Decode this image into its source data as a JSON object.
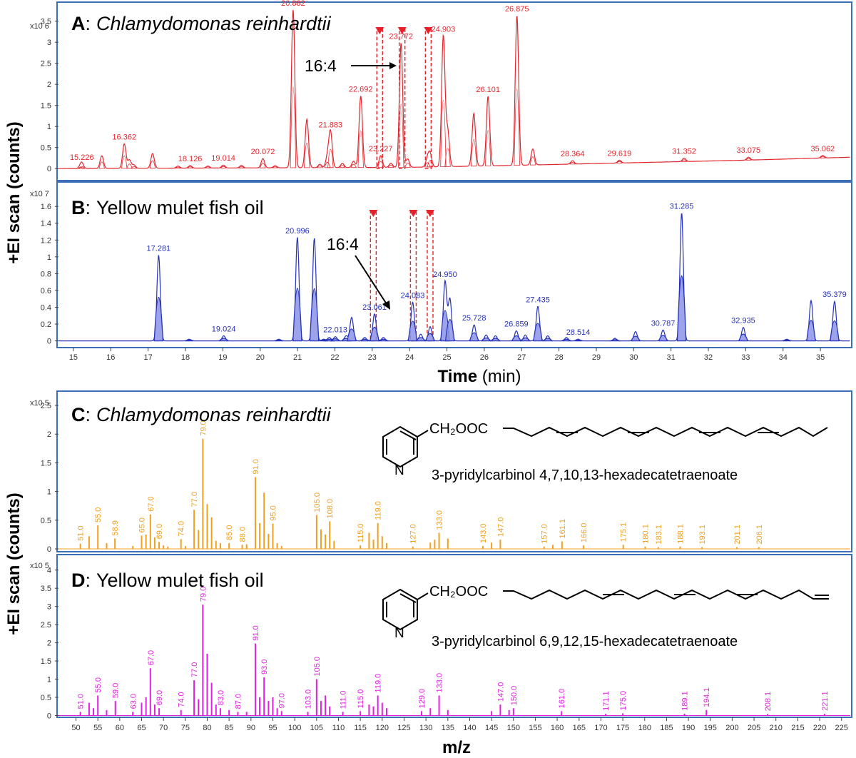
{
  "ylabel": "+EI scan (counts)",
  "colors": {
    "chrom_a": "#e3262d",
    "chrom_b": "#2431b8",
    "spec_c": "#f0a020",
    "spec_d": "#e020e0",
    "frame": "#3a6fb5",
    "marker": "#e8202a"
  },
  "panels": {
    "a": {
      "letter": "A",
      "sep": ":",
      "name": "Chlamydomonas reinhardtii",
      "italic": true,
      "exponent": "x10 6",
      "arrow_label": "16:4"
    },
    "b": {
      "letter": "B",
      "sep": ":",
      "name": "Yellow mulet fish oil",
      "italic": false,
      "exponent": "x10 7",
      "arrow_label": "16:4"
    },
    "c": {
      "letter": "C",
      "sep": ":",
      "name": "Chlamydomonas reinhardtii",
      "italic": true,
      "exponent": "x10 5",
      "compound": "3-pyridylcarbinol 4,7,10,13-hexadecatetraenoate",
      "formula": "CH₂OOC"
    },
    "d": {
      "letter": "D",
      "sep": ":",
      "name": "Yellow mulet fish oil",
      "italic": false,
      "exponent": "x10 5",
      "compound": "3-pyridylcarbinol 6,9,12,15-hexadecatetraenoate",
      "formula": "CH₂OOC"
    }
  },
  "axis_titles": {
    "time_bold": "Time",
    "time_unit": " (min)",
    "mz": "m/z"
  },
  "chart_data": [
    {
      "type": "line",
      "id": "A",
      "title": "Chlamydomonas reinhardtii",
      "xlabel": "Time (min)",
      "ylabel": "+EI scan (counts)",
      "xlim": [
        14.6,
        35.8
      ],
      "ylim": [
        -0.2,
        3.8
      ],
      "yticks": [
        "0",
        "0.5",
        "1",
        "1.5",
        "2",
        "2.5",
        "3",
        "3.5"
      ],
      "marked_rt": [
        23.2,
        23.8,
        24.5
      ],
      "peaks": [
        {
          "rt": 15.2,
          "h": 0.06
        },
        {
          "rt": 15.226,
          "h": 0.1,
          "label": "15.226"
        },
        {
          "rt": 15.76,
          "h": 0.3
        },
        {
          "rt": 16.362,
          "h": 0.58,
          "label": "16.362"
        },
        {
          "rt": 16.5,
          "h": 0.2
        },
        {
          "rt": 16.62,
          "h": 0.08
        },
        {
          "rt": 17.12,
          "h": 0.35
        },
        {
          "rt": 17.8,
          "h": 0.05
        },
        {
          "rt": 18.126,
          "h": 0.06,
          "label": "18.126"
        },
        {
          "rt": 18.6,
          "h": 0.05
        },
        {
          "rt": 19.014,
          "h": 0.07,
          "label": "19.014"
        },
        {
          "rt": 19.5,
          "h": 0.06
        },
        {
          "rt": 20.072,
          "h": 0.22,
          "label": "20.072"
        },
        {
          "rt": 20.4,
          "h": 0.05
        },
        {
          "rt": 20.882,
          "h": 3.75,
          "label": "20.882"
        },
        {
          "rt": 21.25,
          "h": 1.15
        },
        {
          "rt": 21.6,
          "h": 0.08
        },
        {
          "rt": 21.8,
          "h": 0.25
        },
        {
          "rt": 21.883,
          "h": 0.85,
          "label": "21.883"
        },
        {
          "rt": 22.2,
          "h": 0.1
        },
        {
          "rt": 22.5,
          "h": 0.15
        },
        {
          "rt": 22.692,
          "h": 1.7,
          "label": "22.692"
        },
        {
          "rt": 23.227,
          "h": 0.28,
          "label": "23.227"
        },
        {
          "rt": 23.5,
          "h": 0.1
        },
        {
          "rt": 23.772,
          "h": 2.95,
          "label": "23.772"
        },
        {
          "rt": 23.95,
          "h": 0.2
        },
        {
          "rt": 24.48,
          "h": 0.2
        },
        {
          "rt": 24.55,
          "h": 0.3
        },
        {
          "rt": 24.903,
          "h": 3.1,
          "label": "24.903"
        },
        {
          "rt": 25.02,
          "h": 0.85
        },
        {
          "rt": 25.72,
          "h": 1.25
        },
        {
          "rt": 26.101,
          "h": 1.65,
          "label": "26.101"
        },
        {
          "rt": 26.875,
          "h": 3.55,
          "label": "26.875"
        },
        {
          "rt": 27.3,
          "h": 0.38
        },
        {
          "rt": 28.364,
          "h": 0.08,
          "label": "28.364"
        },
        {
          "rt": 29.619,
          "h": 0.07,
          "label": "29.619"
        },
        {
          "rt": 31.352,
          "h": 0.08,
          "label": "31.352"
        },
        {
          "rt": 33.075,
          "h": 0.07,
          "label": "33.075"
        },
        {
          "rt": 35.062,
          "h": 0.06,
          "label": "35.062"
        }
      ],
      "baseline": [
        [
          14.6,
          0.0
        ],
        [
          24.0,
          0.03
        ],
        [
          27.0,
          0.08
        ],
        [
          30.0,
          0.14
        ],
        [
          33.0,
          0.2
        ],
        [
          35.8,
          0.27
        ]
      ]
    },
    {
      "type": "area",
      "id": "B",
      "title": "Yellow mulet fish oil",
      "xlabel": "Time (min)",
      "ylabel": "+EI scan (counts)",
      "xlim": [
        14.6,
        35.8
      ],
      "ylim": [
        -0.08,
        1.78
      ],
      "yticks": [
        "0",
        "0.2",
        "0.4",
        "0.6",
        "0.8",
        "1",
        "1.2",
        "1.4",
        "1.6"
      ],
      "xticks": [
        "15",
        "16",
        "17",
        "18",
        "19",
        "20",
        "21",
        "22",
        "23",
        "24",
        "25",
        "26",
        "27",
        "28",
        "29",
        "30",
        "31",
        "32",
        "33",
        "34",
        "35"
      ],
      "marked_rt": [
        23.03,
        24.1,
        24.55
      ],
      "peaks": [
        {
          "rt": 17.281,
          "h": 1.02,
          "label": "17.281"
        },
        {
          "rt": 18.1,
          "h": 0.02
        },
        {
          "rt": 19.024,
          "h": 0.06,
          "label": "19.024"
        },
        {
          "rt": 20.5,
          "h": 0.02
        },
        {
          "rt": 20.996,
          "h": 1.23,
          "label": "20.996"
        },
        {
          "rt": 21.45,
          "h": 1.22
        },
        {
          "rt": 21.7,
          "h": 0.02
        },
        {
          "rt": 21.85,
          "h": 0.04
        },
        {
          "rt": 22.013,
          "h": 0.05,
          "label": "22.013"
        },
        {
          "rt": 22.3,
          "h": 0.06
        },
        {
          "rt": 22.45,
          "h": 0.28
        },
        {
          "rt": 22.8,
          "h": 0.04
        },
        {
          "rt": 23.061,
          "h": 0.32,
          "label": "23.061"
        },
        {
          "rt": 23.3,
          "h": 0.04
        },
        {
          "rt": 24.083,
          "h": 0.46,
          "label": "24.083"
        },
        {
          "rt": 24.3,
          "h": 0.08
        },
        {
          "rt": 24.55,
          "h": 0.17
        },
        {
          "rt": 24.95,
          "h": 0.71,
          "label": "24.950"
        },
        {
          "rt": 25.08,
          "h": 0.5
        },
        {
          "rt": 25.728,
          "h": 0.19,
          "label": "25.728"
        },
        {
          "rt": 26.05,
          "h": 0.07
        },
        {
          "rt": 26.3,
          "h": 0.06
        },
        {
          "rt": 26.859,
          "h": 0.12,
          "label": "26.859"
        },
        {
          "rt": 27.1,
          "h": 0.07
        },
        {
          "rt": 27.435,
          "h": 0.41,
          "label": "27.435"
        },
        {
          "rt": 27.7,
          "h": 0.06
        },
        {
          "rt": 28.2,
          "h": 0.04
        },
        {
          "rt": 28.514,
          "h": 0.02,
          "label": "28.514"
        },
        {
          "rt": 29.5,
          "h": 0.03
        },
        {
          "rt": 30.05,
          "h": 0.11
        },
        {
          "rt": 30.787,
          "h": 0.13,
          "label": "30.787"
        },
        {
          "rt": 31.285,
          "h": 1.52,
          "label": "31.285"
        },
        {
          "rt": 32.935,
          "h": 0.16,
          "label": "32.935"
        },
        {
          "rt": 34.1,
          "h": 0.02
        },
        {
          "rt": 34.75,
          "h": 0.48
        },
        {
          "rt": 35.379,
          "h": 0.47,
          "label": "35.379"
        }
      ]
    },
    {
      "type": "bar",
      "id": "C",
      "title": "Chlamydomonas reinhardtii",
      "ylabel": "+EI scan (counts)",
      "xlim": [
        46,
        227
      ],
      "ylim": [
        -0.05,
        2.65
      ],
      "yticks": [
        "0",
        "0.5",
        "1",
        "1.5",
        "2",
        "2.5"
      ],
      "labeled": [
        {
          "mz": 51.0,
          "h": 0.09,
          "label": "51.0"
        },
        {
          "mz": 53.0,
          "h": 0.22
        },
        {
          "mz": 55.0,
          "h": 0.41,
          "label": "55.0"
        },
        {
          "mz": 57.0,
          "h": 0.1
        },
        {
          "mz": 58.9,
          "h": 0.18,
          "label": "58.9"
        },
        {
          "mz": 63.0,
          "h": 0.05
        },
        {
          "mz": 65.0,
          "h": 0.23,
          "label": "65.0"
        },
        {
          "mz": 66.0,
          "h": 0.25
        },
        {
          "mz": 67.0,
          "h": 0.6,
          "label": "67.0"
        },
        {
          "mz": 68.0,
          "h": 0.2
        },
        {
          "mz": 69.0,
          "h": 0.12,
          "label": "69.0"
        },
        {
          "mz": 70.0,
          "h": 0.06
        },
        {
          "mz": 71.0,
          "h": 0.04
        },
        {
          "mz": 74.0,
          "h": 0.17,
          "label": "74.0"
        },
        {
          "mz": 75.0,
          "h": 0.05
        },
        {
          "mz": 77.0,
          "h": 0.68,
          "label": "77.0"
        },
        {
          "mz": 78.0,
          "h": 0.33
        },
        {
          "mz": 79.0,
          "h": 1.92,
          "label": "79.0"
        },
        {
          "mz": 80.0,
          "h": 0.78
        },
        {
          "mz": 81.0,
          "h": 0.55
        },
        {
          "mz": 82.0,
          "h": 0.14
        },
        {
          "mz": 83.0,
          "h": 0.1
        },
        {
          "mz": 85.0,
          "h": 0.1,
          "label": "85.0"
        },
        {
          "mz": 88.0,
          "h": 0.07,
          "label": "88.0"
        },
        {
          "mz": 89.0,
          "h": 0.08
        },
        {
          "mz": 91.0,
          "h": 1.25,
          "label": "91.0"
        },
        {
          "mz": 92.0,
          "h": 0.45
        },
        {
          "mz": 93.0,
          "h": 0.98
        },
        {
          "mz": 94.0,
          "h": 0.26
        },
        {
          "mz": 95.0,
          "h": 0.44,
          "label": "95.0"
        },
        {
          "mz": 96.0,
          "h": 0.1
        },
        {
          "mz": 97.0,
          "h": 0.05
        },
        {
          "mz": 105.0,
          "h": 0.59,
          "label": "105.0"
        },
        {
          "mz": 106.0,
          "h": 0.34
        },
        {
          "mz": 107.0,
          "h": 0.25
        },
        {
          "mz": 108.0,
          "h": 0.48,
          "label": "108.0"
        },
        {
          "mz": 109.0,
          "h": 0.14
        },
        {
          "mz": 115.0,
          "h": 0.06,
          "label": "115.0"
        },
        {
          "mz": 117.0,
          "h": 0.28
        },
        {
          "mz": 118.0,
          "h": 0.16
        },
        {
          "mz": 119.0,
          "h": 0.45,
          "label": "119.0"
        },
        {
          "mz": 120.0,
          "h": 0.22
        },
        {
          "mz": 121.0,
          "h": 0.1
        },
        {
          "mz": 127.0,
          "h": 0.04,
          "label": "127.0"
        },
        {
          "mz": 131.0,
          "h": 0.11
        },
        {
          "mz": 132.0,
          "h": 0.16
        },
        {
          "mz": 133.0,
          "h": 0.28,
          "label": "133.0"
        },
        {
          "mz": 135.0,
          "h": 0.18
        },
        {
          "mz": 143.0,
          "h": 0.05,
          "label": "143.0"
        },
        {
          "mz": 145.0,
          "h": 0.11
        },
        {
          "mz": 147.0,
          "h": 0.16,
          "label": "147.0"
        },
        {
          "mz": 157.0,
          "h": 0.04,
          "label": "157.0"
        },
        {
          "mz": 159.0,
          "h": 0.07
        },
        {
          "mz": 161.1,
          "h": 0.13,
          "label": "161.1"
        },
        {
          "mz": 166.0,
          "h": 0.06,
          "label": "166.0"
        },
        {
          "mz": 175.1,
          "h": 0.07,
          "label": "175.1"
        },
        {
          "mz": 180.1,
          "h": 0.04,
          "label": "180.1"
        },
        {
          "mz": 183.1,
          "h": 0.03,
          "label": "183.1"
        },
        {
          "mz": 188.1,
          "h": 0.04,
          "label": "188.1"
        },
        {
          "mz": 193.1,
          "h": 0.03,
          "label": "193.1"
        },
        {
          "mz": 201.1,
          "h": 0.03,
          "label": "201.1"
        },
        {
          "mz": 206.1,
          "h": 0.03,
          "label": "206.1"
        }
      ]
    },
    {
      "type": "bar",
      "id": "D",
      "title": "Yellow mulet fish oil",
      "xlabel": "m/z",
      "ylabel": "+EI scan (counts)",
      "xlim": [
        46,
        227
      ],
      "ylim": [
        -0.05,
        4.25
      ],
      "yticks": [
        "0",
        "0.5",
        "1",
        "1.5",
        "2",
        "2.5",
        "3",
        "3.5",
        "4"
      ],
      "xticks": [
        "50",
        "55",
        "60",
        "65",
        "70",
        "75",
        "80",
        "85",
        "90",
        "95",
        "100",
        "105",
        "110",
        "115",
        "120",
        "125",
        "130",
        "135",
        "140",
        "145",
        "150",
        "155",
        "160",
        "165",
        "170",
        "175",
        "180",
        "185",
        "190",
        "195",
        "200",
        "205",
        "210",
        "215",
        "220",
        "225"
      ],
      "labeled": [
        {
          "mz": 51.0,
          "h": 0.1,
          "label": "51.0"
        },
        {
          "mz": 53.0,
          "h": 0.35
        },
        {
          "mz": 54.0,
          "h": 0.2
        },
        {
          "mz": 55.0,
          "h": 0.55,
          "label": "55.0"
        },
        {
          "mz": 57.0,
          "h": 0.15
        },
        {
          "mz": 59.0,
          "h": 0.4,
          "label": "59.0"
        },
        {
          "mz": 63.0,
          "h": 0.1,
          "label": "63.0"
        },
        {
          "mz": 65.0,
          "h": 0.35
        },
        {
          "mz": 66.0,
          "h": 0.5
        },
        {
          "mz": 67.0,
          "h": 1.3,
          "label": "67.0"
        },
        {
          "mz": 68.0,
          "h": 0.3
        },
        {
          "mz": 69.0,
          "h": 0.2,
          "label": "69.0"
        },
        {
          "mz": 74.0,
          "h": 0.15,
          "label": "74.0"
        },
        {
          "mz": 77.0,
          "h": 0.97,
          "label": "77.0"
        },
        {
          "mz": 78.0,
          "h": 0.45
        },
        {
          "mz": 79.0,
          "h": 3.05,
          "label": "79.0"
        },
        {
          "mz": 80.0,
          "h": 1.7
        },
        {
          "mz": 81.0,
          "h": 0.9
        },
        {
          "mz": 82.0,
          "h": 0.3
        },
        {
          "mz": 83.0,
          "h": 0.2,
          "label": "83.0"
        },
        {
          "mz": 85.0,
          "h": 0.15
        },
        {
          "mz": 87.0,
          "h": 0.1,
          "label": "87.0"
        },
        {
          "mz": 89.0,
          "h": 0.1
        },
        {
          "mz": 91.0,
          "h": 1.98,
          "label": "91.0"
        },
        {
          "mz": 92.0,
          "h": 0.5
        },
        {
          "mz": 93.0,
          "h": 1.05,
          "label": "93.0"
        },
        {
          "mz": 94.0,
          "h": 0.4
        },
        {
          "mz": 95.0,
          "h": 0.5
        },
        {
          "mz": 96.0,
          "h": 0.2
        },
        {
          "mz": 97.0,
          "h": 0.12,
          "label": "97.0"
        },
        {
          "mz": 103.0,
          "h": 0.1,
          "label": "103.0"
        },
        {
          "mz": 105.0,
          "h": 1.0,
          "label": "105.0"
        },
        {
          "mz": 106.0,
          "h": 0.4
        },
        {
          "mz": 107.0,
          "h": 0.55
        },
        {
          "mz": 108.0,
          "h": 0.25
        },
        {
          "mz": 111.0,
          "h": 0.1,
          "label": "111.0"
        },
        {
          "mz": 115.0,
          "h": 0.12,
          "label": "115.0"
        },
        {
          "mz": 117.0,
          "h": 0.3
        },
        {
          "mz": 118.0,
          "h": 0.25
        },
        {
          "mz": 119.0,
          "h": 0.55,
          "label": "119.0"
        },
        {
          "mz": 120.0,
          "h": 0.35
        },
        {
          "mz": 121.0,
          "h": 0.2
        },
        {
          "mz": 129.0,
          "h": 0.12,
          "label": "129.0"
        },
        {
          "mz": 131.0,
          "h": 0.2
        },
        {
          "mz": 133.0,
          "h": 0.55,
          "label": "133.0"
        },
        {
          "mz": 135.0,
          "h": 0.15
        },
        {
          "mz": 145.0,
          "h": 0.12
        },
        {
          "mz": 147.0,
          "h": 0.3,
          "label": "147.0"
        },
        {
          "mz": 149.0,
          "h": 0.15
        },
        {
          "mz": 150.0,
          "h": 0.2,
          "label": "150.0"
        },
        {
          "mz": 161.0,
          "h": 0.12,
          "label": "161.0"
        },
        {
          "mz": 171.1,
          "h": 0.05,
          "label": "171.1"
        },
        {
          "mz": 175.0,
          "h": 0.06,
          "label": "175.0"
        },
        {
          "mz": 189.1,
          "h": 0.05,
          "label": "189.1"
        },
        {
          "mz": 194.1,
          "h": 0.15,
          "label": "194.1"
        },
        {
          "mz": 208.1,
          "h": 0.04,
          "label": "208.1"
        },
        {
          "mz": 221.1,
          "h": 0.05,
          "label": "221.1"
        }
      ]
    }
  ]
}
